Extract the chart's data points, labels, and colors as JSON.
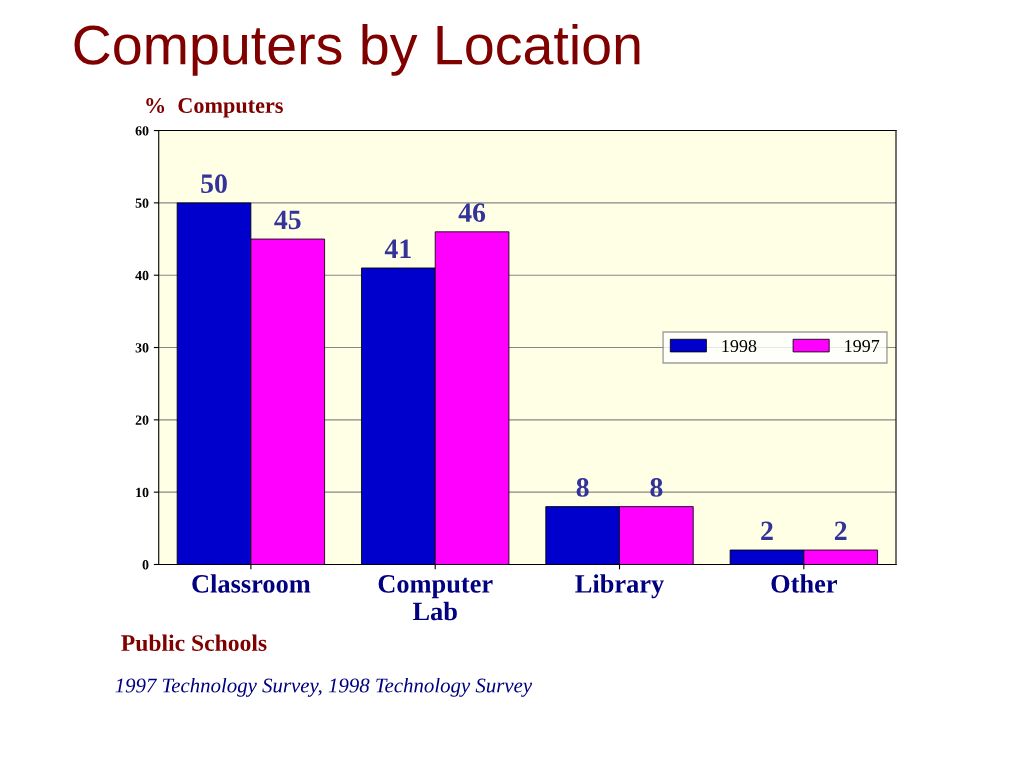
{
  "chart_data": {
    "type": "bar",
    "title": "Computers by Location",
    "ylabel": "%  Computers",
    "categories": [
      "Classroom",
      "Computer\nLab",
      "Library",
      "Other"
    ],
    "series": [
      {
        "name": "1998",
        "color": "#0000cc",
        "values": [
          50,
          41,
          8,
          2
        ]
      },
      {
        "name": "1997",
        "color": "#ff00ff",
        "values": [
          45,
          46,
          8,
          2
        ]
      }
    ],
    "ylim": [
      0,
      60
    ],
    "yticks": [
      0,
      10,
      20,
      30,
      40,
      50,
      60
    ],
    "grid": "y",
    "legend": "right",
    "data_labels": true,
    "annotations": [
      "Public Schools",
      "1997 Technology Survey, 1998 Technology Survey"
    ]
  }
}
